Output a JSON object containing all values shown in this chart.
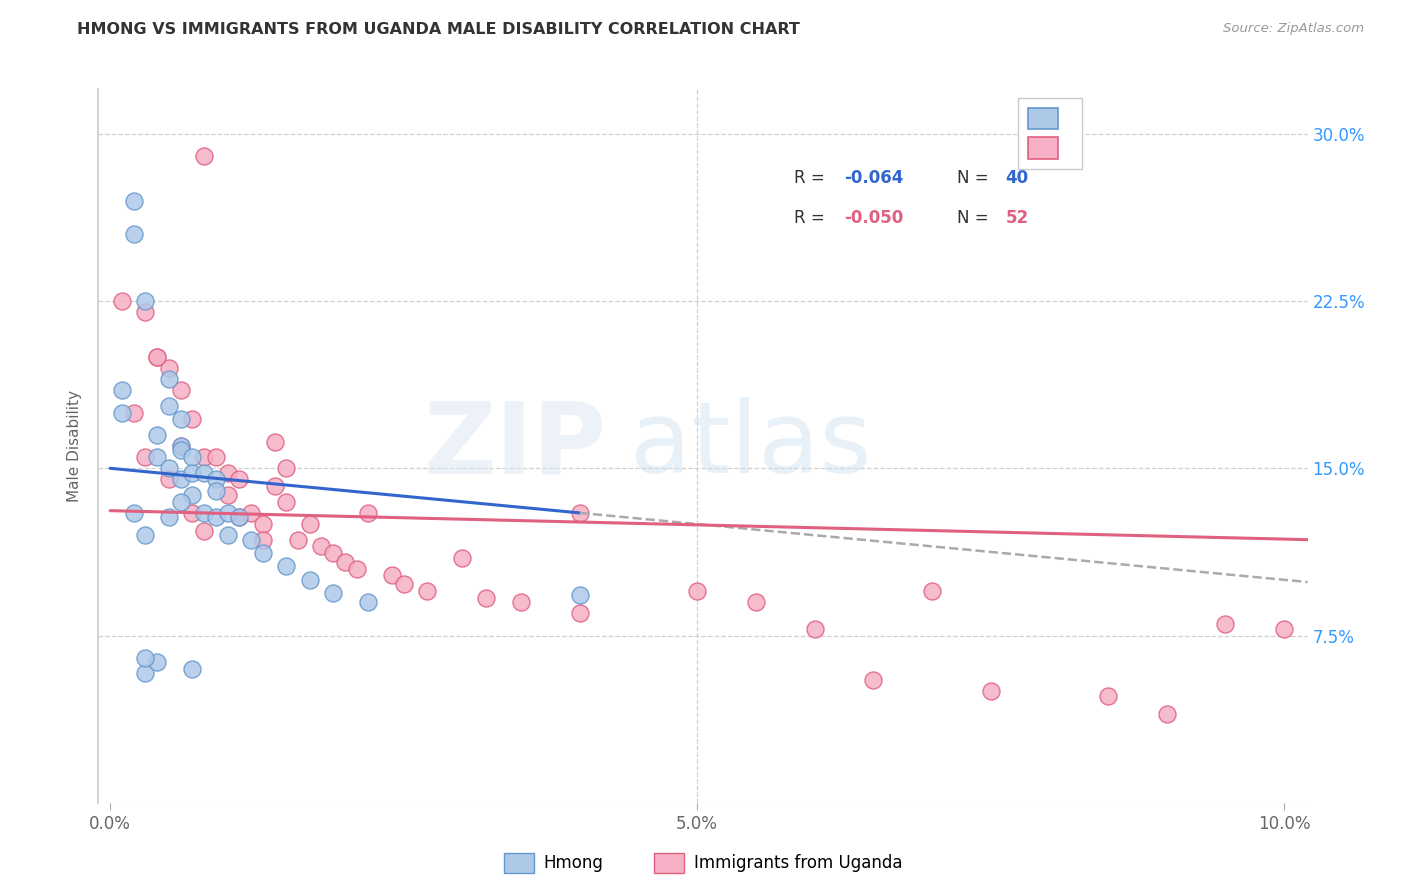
{
  "title": "HMONG VS IMMIGRANTS FROM UGANDA MALE DISABILITY CORRELATION CHART",
  "source": "Source: ZipAtlas.com",
  "ylabel": "Male Disability",
  "xlim": [
    -0.001,
    0.102
  ],
  "ylim": [
    0.0,
    0.32
  ],
  "y_ticks": [
    0.0,
    0.075,
    0.15,
    0.225,
    0.3
  ],
  "y_tick_labels": [
    "",
    "7.5%",
    "15.0%",
    "22.5%",
    "30.0%"
  ],
  "x_ticks": [
    0.0,
    0.05,
    0.1
  ],
  "x_tick_labels": [
    "0.0%",
    "5.0%",
    "10.0%"
  ],
  "hmong_color": "#aec8e8",
  "uganda_color": "#f5b0c5",
  "hmong_edge": "#6699cc",
  "uganda_edge": "#e06080",
  "trendline_hmong_color": "#3366cc",
  "trendline_uganda_color": "#e06080",
  "trendline_hmong_x0": 0.0,
  "trendline_hmong_y0": 0.15,
  "trendline_hmong_x1": 0.04,
  "trendline_hmong_y1": 0.13,
  "trendline_ext_x0": 0.04,
  "trendline_ext_y0": 0.13,
  "trendline_ext_x1": 0.102,
  "trendline_ext_y1": 0.099,
  "trendline_uganda_x0": 0.0,
  "trendline_uganda_y0": 0.131,
  "trendline_uganda_x1": 0.102,
  "trendline_uganda_y1": 0.118,
  "hmong_label": "Hmong",
  "uganda_label": "Immigrants from Uganda",
  "background_color": "#ffffff",
  "grid_color": "#d0d0d0",
  "hmong_x": [
    0.001,
    0.001,
    0.002,
    0.002,
    0.003,
    0.003,
    0.004,
    0.004,
    0.004,
    0.005,
    0.005,
    0.005,
    0.006,
    0.006,
    0.006,
    0.006,
    0.007,
    0.007,
    0.007,
    0.008,
    0.008,
    0.009,
    0.009,
    0.009,
    0.01,
    0.01,
    0.011,
    0.012,
    0.013,
    0.015,
    0.017,
    0.019,
    0.022,
    0.002,
    0.003,
    0.003,
    0.005,
    0.006,
    0.04,
    0.007
  ],
  "hmong_y": [
    0.185,
    0.175,
    0.27,
    0.255,
    0.225,
    0.058,
    0.165,
    0.155,
    0.063,
    0.19,
    0.178,
    0.15,
    0.172,
    0.16,
    0.158,
    0.145,
    0.155,
    0.148,
    0.138,
    0.148,
    0.13,
    0.145,
    0.14,
    0.128,
    0.13,
    0.12,
    0.128,
    0.118,
    0.112,
    0.106,
    0.1,
    0.094,
    0.09,
    0.13,
    0.065,
    0.12,
    0.128,
    0.135,
    0.093,
    0.06
  ],
  "uganda_x": [
    0.001,
    0.002,
    0.003,
    0.003,
    0.004,
    0.005,
    0.005,
    0.006,
    0.007,
    0.007,
    0.008,
    0.008,
    0.009,
    0.01,
    0.01,
    0.011,
    0.011,
    0.012,
    0.013,
    0.013,
    0.014,
    0.014,
    0.015,
    0.016,
    0.017,
    0.018,
    0.019,
    0.02,
    0.021,
    0.022,
    0.024,
    0.025,
    0.027,
    0.03,
    0.032,
    0.035,
    0.04,
    0.04,
    0.05,
    0.055,
    0.06,
    0.065,
    0.07,
    0.075,
    0.085,
    0.09,
    0.095,
    0.004,
    0.006,
    0.008,
    0.015,
    0.1
  ],
  "uganda_y": [
    0.225,
    0.175,
    0.22,
    0.155,
    0.2,
    0.195,
    0.145,
    0.16,
    0.172,
    0.13,
    0.155,
    0.122,
    0.155,
    0.148,
    0.138,
    0.145,
    0.128,
    0.13,
    0.125,
    0.118,
    0.162,
    0.142,
    0.135,
    0.118,
    0.125,
    0.115,
    0.112,
    0.108,
    0.105,
    0.13,
    0.102,
    0.098,
    0.095,
    0.11,
    0.092,
    0.09,
    0.13,
    0.085,
    0.095,
    0.09,
    0.078,
    0.055,
    0.095,
    0.05,
    0.048,
    0.04,
    0.08,
    0.2,
    0.185,
    0.29,
    0.15,
    0.078
  ]
}
